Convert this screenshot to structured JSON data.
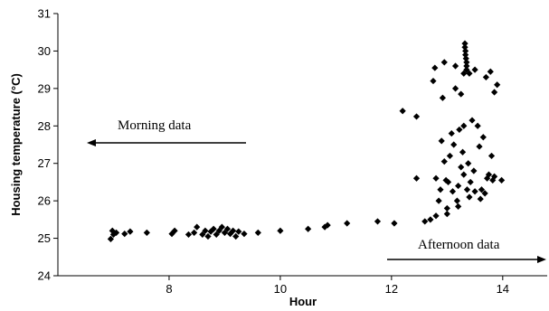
{
  "chart_data": {
    "type": "scatter",
    "xlabel": "Hour",
    "ylabel": "Housing temperature (°C)",
    "xlim": [
      6,
      14.8
    ],
    "ylim": [
      24,
      31
    ],
    "x_ticks": [
      8,
      10,
      12,
      14
    ],
    "y_ticks": [
      24,
      25,
      26,
      27,
      28,
      29,
      30,
      31
    ],
    "grid": false,
    "marker": "diamond",
    "marker_color": "#000000",
    "annotations": [
      {
        "text": "Morning data",
        "arrow": "left"
      },
      {
        "text": "Afternoon data",
        "arrow": "right"
      }
    ],
    "series": [
      {
        "points": [
          [
            6.95,
            24.98
          ],
          [
            6.98,
            25.2
          ],
          [
            7.0,
            25.1
          ],
          [
            7.05,
            25.15
          ],
          [
            7.2,
            25.12
          ],
          [
            7.3,
            25.18
          ],
          [
            7.6,
            25.15
          ],
          [
            8.05,
            25.12
          ],
          [
            8.1,
            25.2
          ],
          [
            8.35,
            25.1
          ],
          [
            8.45,
            25.15
          ],
          [
            8.5,
            25.3
          ],
          [
            8.6,
            25.1
          ],
          [
            8.65,
            25.2
          ],
          [
            8.7,
            25.05
          ],
          [
            8.75,
            25.18
          ],
          [
            8.8,
            25.25
          ],
          [
            8.85,
            25.1
          ],
          [
            8.9,
            25.2
          ],
          [
            8.95,
            25.3
          ],
          [
            9.0,
            25.15
          ],
          [
            9.05,
            25.25
          ],
          [
            9.1,
            25.12
          ],
          [
            9.15,
            25.2
          ],
          [
            9.2,
            25.05
          ],
          [
            9.25,
            25.18
          ],
          [
            9.35,
            25.12
          ],
          [
            9.6,
            25.15
          ],
          [
            10.0,
            25.2
          ],
          [
            10.5,
            25.25
          ],
          [
            10.8,
            25.3
          ],
          [
            10.85,
            25.35
          ],
          [
            11.2,
            25.4
          ],
          [
            11.75,
            25.45
          ],
          [
            12.05,
            25.4
          ],
          [
            12.2,
            28.4
          ],
          [
            12.45,
            28.25
          ],
          [
            12.45,
            26.6
          ],
          [
            12.6,
            25.45
          ],
          [
            12.7,
            25.5
          ],
          [
            12.75,
            29.2
          ],
          [
            12.78,
            29.55
          ],
          [
            12.8,
            26.6
          ],
          [
            12.8,
            25.6
          ],
          [
            12.85,
            26.0
          ],
          [
            12.88,
            26.3
          ],
          [
            12.9,
            27.6
          ],
          [
            12.92,
            28.75
          ],
          [
            12.95,
            29.7
          ],
          [
            12.95,
            27.05
          ],
          [
            12.98,
            26.55
          ],
          [
            13.0,
            25.65
          ],
          [
            13.0,
            25.8
          ],
          [
            13.02,
            26.5
          ],
          [
            13.05,
            27.2
          ],
          [
            13.08,
            27.8
          ],
          [
            13.1,
            26.25
          ],
          [
            13.12,
            27.5
          ],
          [
            13.15,
            29.6
          ],
          [
            13.15,
            29.0
          ],
          [
            13.18,
            26.0
          ],
          [
            13.2,
            25.85
          ],
          [
            13.2,
            26.4
          ],
          [
            13.22,
            27.9
          ],
          [
            13.25,
            28.85
          ],
          [
            13.25,
            26.9
          ],
          [
            13.28,
            27.3
          ],
          [
            13.3,
            28.0
          ],
          [
            13.3,
            26.7
          ],
          [
            13.3,
            29.4
          ],
          [
            13.32,
            30.2
          ],
          [
            13.32,
            30.1
          ],
          [
            13.33,
            30.0
          ],
          [
            13.33,
            29.9
          ],
          [
            13.34,
            29.8
          ],
          [
            13.35,
            29.7
          ],
          [
            13.35,
            29.6
          ],
          [
            13.35,
            29.5
          ],
          [
            13.36,
            26.3
          ],
          [
            13.38,
            27.0
          ],
          [
            13.4,
            29.4
          ],
          [
            13.4,
            26.1
          ],
          [
            13.42,
            26.5
          ],
          [
            13.45,
            28.15
          ],
          [
            13.48,
            26.8
          ],
          [
            13.5,
            29.5
          ],
          [
            13.5,
            26.25
          ],
          [
            13.55,
            28.0
          ],
          [
            13.58,
            27.45
          ],
          [
            13.6,
            26.05
          ],
          [
            13.62,
            26.3
          ],
          [
            13.65,
            27.7
          ],
          [
            13.68,
            26.2
          ],
          [
            13.7,
            29.3
          ],
          [
            13.72,
            26.6
          ],
          [
            13.75,
            26.7
          ],
          [
            13.78,
            29.45
          ],
          [
            13.8,
            27.2
          ],
          [
            13.82,
            26.55
          ],
          [
            13.85,
            28.9
          ],
          [
            13.85,
            26.65
          ],
          [
            13.9,
            29.1
          ],
          [
            13.98,
            26.55
          ]
        ]
      }
    ]
  }
}
